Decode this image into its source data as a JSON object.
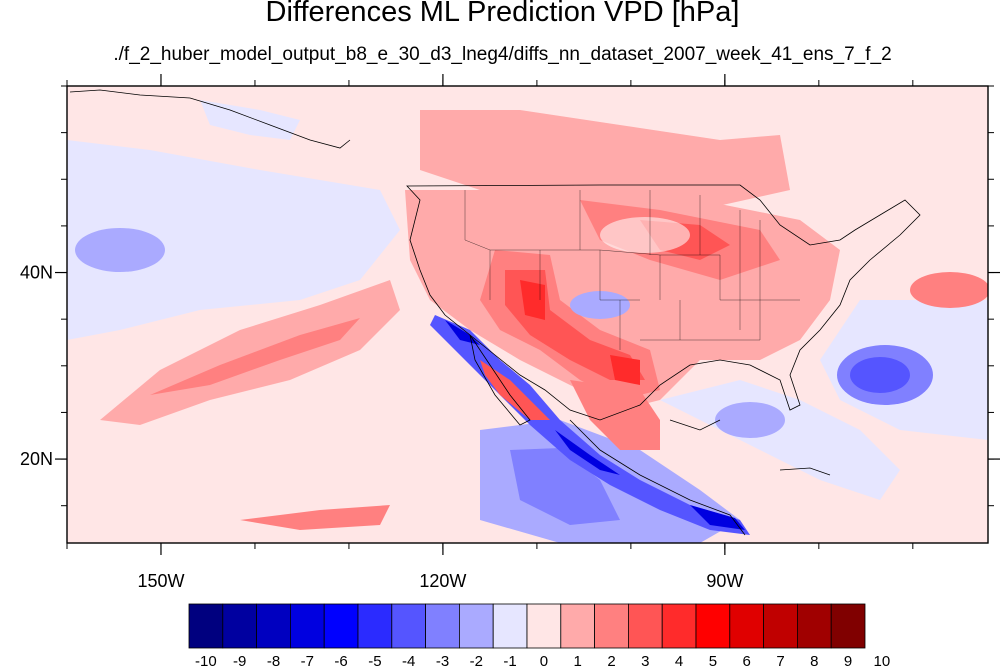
{
  "title": "Differences ML Prediction VPD [hPa]",
  "subtitle": "./f_2_huber_model_output_b8_e_30_d3_lneg4/diffs_nn_dataset_2007_week_41_ens_7_f_2",
  "map": {
    "lon_range": [
      -160,
      -62
    ],
    "lat_range": [
      11,
      60
    ],
    "lon_ticks": [
      {
        "value": -150,
        "label": "150W"
      },
      {
        "value": -120,
        "label": "120W"
      },
      {
        "value": -90,
        "label": "90W"
      }
    ],
    "lat_ticks": [
      {
        "value": 40,
        "label": "40N"
      },
      {
        "value": 20,
        "label": "20N"
      }
    ]
  },
  "colorbar": {
    "labels": [
      "-10",
      "-9",
      "-8",
      "-7",
      "-6",
      "-5",
      "-4",
      "-3",
      "-2",
      "-1",
      "0",
      "1",
      "2",
      "3",
      "4",
      "5",
      "6",
      "7",
      "8",
      "9",
      "10"
    ],
    "colors": [
      "#00007f",
      "#00009f",
      "#0000bf",
      "#0000df",
      "#0000ff",
      "#2a2aff",
      "#5555ff",
      "#7f7fff",
      "#aaaaff",
      "#d4d4ff",
      "#ffffff",
      "#ffd4d4",
      "#ffaaaa",
      "#ff7f7f",
      "#ff5555",
      "#ff2a2a",
      "#ff0000",
      "#df0000",
      "#bf0000",
      "#9f0000",
      "#7f0000"
    ],
    "bin_colors": [
      "#00007f",
      "#0000a0",
      "#0000c0",
      "#0000e0",
      "#0000ff",
      "#2b2bff",
      "#5555ff",
      "#8080ff",
      "#aaaaff",
      "#e6e6ff",
      "#ffe6e6",
      "#ffaaaa",
      "#ff8080",
      "#ff5555",
      "#ff2b2b",
      "#ff0000",
      "#e00000",
      "#c00000",
      "#a00000",
      "#800000"
    ]
  }
}
